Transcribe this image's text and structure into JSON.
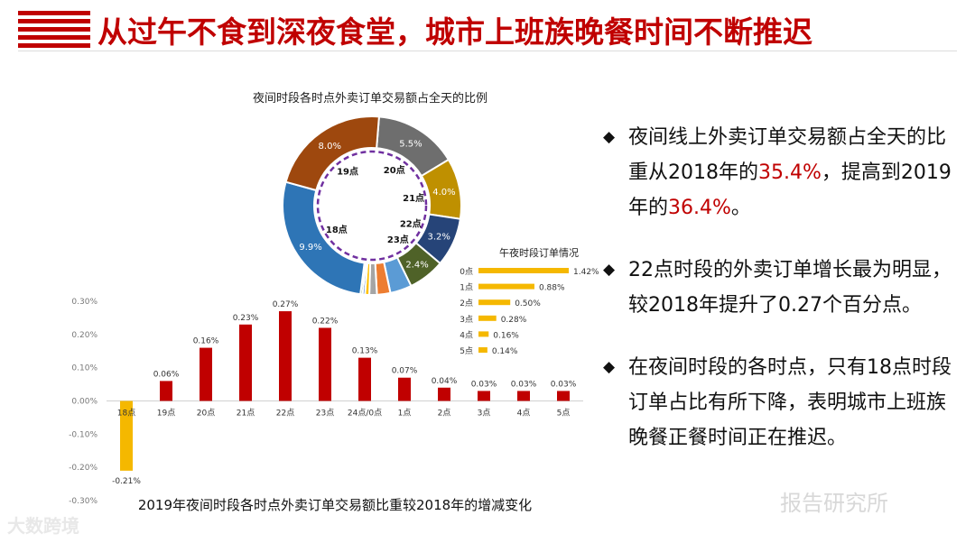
{
  "header": {
    "title": "从过午不食到深夜食堂，城市上班族晚餐时间不断推迟"
  },
  "colors": {
    "accent": "#c00000",
    "bar_positive": "#c00000",
    "bar_negative": "#f5b800",
    "ring_dash": "#7030a0"
  },
  "chart_data": [
    {
      "type": "pie",
      "title": "夜间时段各时点外卖订单交易额占全天的比例",
      "categories": [
        "20点",
        "21点",
        "22点",
        "23点",
        "24点/0点",
        "1点",
        "2点",
        "3点",
        "4点",
        "5点",
        "18点",
        "19点"
      ],
      "values": [
        5.5,
        4.0,
        3.2,
        2.4,
        1.42,
        0.88,
        0.5,
        0.28,
        0.16,
        0.14,
        9.9,
        8.0
      ],
      "value_labels": [
        "5.5%",
        "4.0%",
        "3.2%",
        "2.4%",
        "",
        "",
        "",
        "",
        "",
        "",
        "9.9%",
        "8.0%"
      ],
      "inner_labels": [
        "20点",
        "21点",
        "22点",
        "23点",
        "18点",
        "19点"
      ],
      "colors": [
        "#6e6e6e",
        "#bf9000",
        "#264478",
        "#4f6228",
        "#5b9bd5",
        "#ed7d31",
        "#a5a5a5",
        "#ffc000",
        "#4472c4",
        "#70ad47",
        "#2e75b6",
        "#9e480e"
      ]
    },
    {
      "type": "bar",
      "title": "午夜时段订单情况",
      "orientation": "horizontal",
      "categories": [
        "0点",
        "1点",
        "2点",
        "3点",
        "4点",
        "5点"
      ],
      "values": [
        1.42,
        0.88,
        0.5,
        0.28,
        0.16,
        0.14
      ],
      "value_labels": [
        "1.42%",
        "0.88%",
        "0.50%",
        "0.28%",
        "0.16%",
        "0.14%"
      ]
    },
    {
      "type": "bar",
      "title": "2019年夜间时段各时点外卖订单交易额比重较2018年的增减变化",
      "categories": [
        "18点",
        "19点",
        "20点",
        "21点",
        "22点",
        "23点",
        "24点/0点",
        "1点",
        "2点",
        "3点",
        "4点",
        "5点"
      ],
      "values": [
        -0.21,
        0.06,
        0.16,
        0.23,
        0.27,
        0.22,
        0.13,
        0.07,
        0.04,
        0.03,
        0.03,
        0.03
      ],
      "value_labels": [
        "-0.21%",
        "0.06%",
        "0.16%",
        "0.23%",
        "0.27%",
        "0.22%",
        "0.13%",
        "0.07%",
        "0.04%",
        "0.03%",
        "0.03%",
        "0.03%"
      ],
      "ylim": [
        -0.3,
        0.3
      ],
      "yticks": [
        0.3,
        0.2,
        0.1,
        0.0,
        -0.1,
        -0.2,
        -0.3
      ],
      "ytick_labels": [
        "0.30%",
        "0.20%",
        "0.10%",
        "0.00%",
        "-0.10%",
        "-0.20%",
        "-0.30%"
      ]
    }
  ],
  "bullets": [
    {
      "parts": [
        {
          "t": "夜间线上外卖订单交易额占全天的比重从2018年的"
        },
        {
          "t": "35.4%",
          "hl": true
        },
        {
          "t": "，提高到2019年的"
        },
        {
          "t": "36.4%",
          "hl": true
        },
        {
          "t": "。"
        }
      ]
    },
    {
      "parts": [
        {
          "t": "22点时段的外卖订单增长最为明显，较2018年提升了0.27个百分点。"
        }
      ]
    },
    {
      "parts": [
        {
          "t": "在夜间时段的各时点，只有18点时段订单占比有所下降，表明城市上班族晚餐正餐时间正在推迟。"
        }
      ]
    }
  ],
  "bullet_marker": "◆",
  "watermarks": {
    "left": "大数跨境",
    "right": "报告研究所"
  }
}
